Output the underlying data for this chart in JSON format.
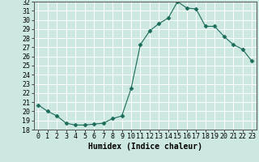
{
  "x": [
    0,
    1,
    2,
    3,
    4,
    5,
    6,
    7,
    8,
    9,
    10,
    11,
    12,
    13,
    14,
    15,
    16,
    17,
    18,
    19,
    20,
    21,
    22,
    23
  ],
  "y": [
    20.7,
    20.0,
    19.5,
    18.7,
    18.5,
    18.5,
    18.6,
    18.7,
    19.2,
    19.5,
    22.5,
    27.3,
    28.8,
    29.6,
    30.2,
    32.0,
    31.3,
    31.2,
    29.3,
    29.3,
    28.2,
    27.3,
    26.8,
    25.5
  ],
  "xlabel": "Humidex (Indice chaleur)",
  "ylim": [
    18,
    32
  ],
  "xlim": [
    -0.5,
    23.5
  ],
  "yticks": [
    18,
    19,
    20,
    21,
    22,
    23,
    24,
    25,
    26,
    27,
    28,
    29,
    30,
    31,
    32
  ],
  "xticks": [
    0,
    1,
    2,
    3,
    4,
    5,
    6,
    7,
    8,
    9,
    10,
    11,
    12,
    13,
    14,
    15,
    16,
    17,
    18,
    19,
    20,
    21,
    22,
    23
  ],
  "xtick_labels": [
    "0",
    "1",
    "2",
    "3",
    "4",
    "5",
    "6",
    "7",
    "8",
    "9",
    "10",
    "11",
    "12",
    "13",
    "14",
    "15",
    "16",
    "17",
    "18",
    "19",
    "20",
    "21",
    "22",
    "23"
  ],
  "line_color": "#1a6b5a",
  "marker": "D",
  "marker_size": 2.5,
  "bg_color": "#cce8e0",
  "grid_color": "#ffffff",
  "axis_fontsize": 7,
  "tick_fontsize": 6,
  "xlabel_fontsize": 7
}
